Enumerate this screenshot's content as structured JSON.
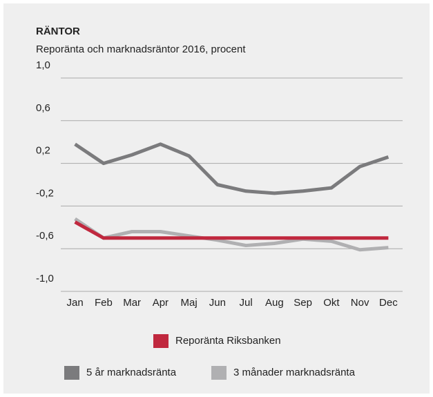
{
  "chart_data": {
    "type": "line",
    "title": "RÄNTOR",
    "subtitle": "Reporänta och marknadsräntor 2016, procent",
    "categories": [
      "Jan",
      "Feb",
      "Mar",
      "Apr",
      "Maj",
      "Jun",
      "Jul",
      "Aug",
      "Sep",
      "Okt",
      "Nov",
      "Dec"
    ],
    "series": [
      {
        "name": "Reporänta Riksbanken",
        "color": "#c0283e",
        "values": [
          -0.35,
          -0.5,
          -0.5,
          -0.5,
          -0.5,
          -0.5,
          -0.5,
          -0.5,
          -0.5,
          -0.5,
          -0.5,
          -0.5
        ]
      },
      {
        "name": "5 år marknadsränta",
        "color": "#7b7b7d",
        "values": [
          0.38,
          0.2,
          0.28,
          0.38,
          0.27,
          0.0,
          -0.06,
          -0.08,
          -0.06,
          -0.03,
          0.17,
          0.26
        ]
      },
      {
        "name": "3 månader marknadsränta",
        "color": "#b0b0b2",
        "values": [
          -0.32,
          -0.5,
          -0.44,
          -0.44,
          -0.48,
          -0.52,
          -0.57,
          -0.55,
          -0.51,
          -0.53,
          -0.61,
          -0.59
        ]
      }
    ],
    "ylim": [
      -1.0,
      1.0
    ],
    "yticks": [
      {
        "value": -1.0,
        "label": "-1,0"
      },
      {
        "value": -0.6,
        "label": "-0,6"
      },
      {
        "value": -0.2,
        "label": "-0,2"
      },
      {
        "value": 0.2,
        "label": "0,2"
      },
      {
        "value": 0.6,
        "label": "0,6"
      },
      {
        "value": 1.0,
        "label": "1,0"
      }
    ],
    "grid": true
  }
}
